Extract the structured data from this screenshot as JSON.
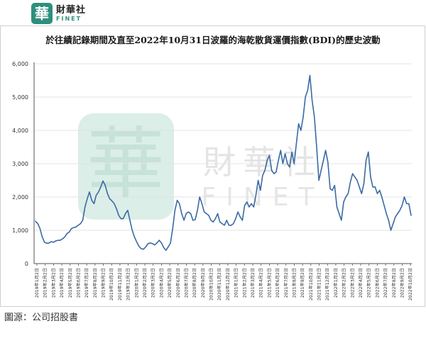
{
  "brand": {
    "mark": "華",
    "name_cn": "財華社",
    "name_en": "FINET"
  },
  "watermark": {
    "mark": "華",
    "name_cn": "財華社",
    "name_en": "FINET"
  },
  "source": "圖源：公司招股書",
  "colors": {
    "line": "#3a6aa3",
    "brand": "#2f8f7c",
    "grid": "#e3e3e3",
    "axis": "#555555"
  },
  "chart_data": {
    "type": "line",
    "title": "於往績記錄期間及直至2022年10月31日波羅的海乾散貨運價指數(BDI)的歷史波動",
    "xlabel": "",
    "ylabel": "",
    "ylim": [
      0,
      6000
    ],
    "yticks": [
      0,
      1000,
      2000,
      3000,
      4000,
      5000,
      6000
    ],
    "ytick_labels": [
      "0",
      "1,000",
      "2,000",
      "3,000",
      "4,000",
      "5,000",
      "6,000"
    ],
    "grid": "horizontal",
    "xticks": [
      "2019年1月2日",
      "2019年2月2日",
      "2019年3月2日",
      "2019年4月2日",
      "2019年5月2日",
      "2019年6月2日",
      "2019年7月2日",
      "2019年8月2日",
      "2019年9月2日",
      "2019年10月2日",
      "2019年11月2日",
      "2019年12月2日",
      "2020年1月2日",
      "2020年2月2日",
      "2020年3月2日",
      "2020年4月2日",
      "2020年5月2日",
      "2020年6月2日",
      "2020年7月2日",
      "2020年8月2日",
      "2020年9月2日",
      "2020年10月2日",
      "2020年11月2日",
      "2020年12月2日",
      "2021年1月2日",
      "2021年2月2日",
      "2021年3月2日",
      "2021年4月2日",
      "2021年5月2日",
      "2021年6月2日",
      "2021年7月2日",
      "2021年8月2日",
      "2021年9月2日",
      "2021年10月2日",
      "2021年11月2日",
      "2021年12月2日",
      "2022年1月2日",
      "2022年2月2日",
      "2022年3月2日",
      "2022年4月2日",
      "2022年5月2日",
      "2022年6月2日",
      "2022年7月2日",
      "2022年8月2日",
      "2022年9月2日",
      "2022年10月2日"
    ],
    "series": [
      {
        "values": [
          1270,
          1200,
          1050,
          800,
          640,
          610,
          620,
          660,
          640,
          680,
          700,
          700,
          740,
          800,
          900,
          950,
          1050,
          1080,
          1100,
          1150,
          1200,
          1300,
          1700,
          1950,
          2150,
          1900,
          1800,
          2050,
          2150,
          2300,
          2480,
          2350,
          2100,
          1950,
          1880,
          1800,
          1650,
          1450,
          1350,
          1350,
          1500,
          1600,
          1300,
          1000,
          800,
          650,
          520,
          450,
          430,
          500,
          600,
          620,
          600,
          560,
          620,
          700,
          620,
          480,
          400,
          500,
          620,
          1050,
          1600,
          1900,
          1800,
          1500,
          1300,
          1500,
          1550,
          1500,
          1300,
          1320,
          1600,
          2000,
          1800,
          1550,
          1500,
          1450,
          1300,
          1250,
          1350,
          1500,
          1250,
          1200,
          1150,
          1300,
          1150,
          1150,
          1200,
          1350,
          1550,
          1400,
          1300,
          1750,
          1850,
          1700,
          1800,
          1700,
          2050,
          2500,
          2200,
          2650,
          2800,
          3100,
          3250,
          2800,
          2700,
          2750,
          3100,
          3400,
          3000,
          3300,
          3000,
          2900,
          3350,
          3000,
          3600,
          4200,
          4000,
          4400,
          5000,
          5200,
          5650,
          4900,
          4400,
          3500,
          2500,
          2800,
          3100,
          3400,
          3050,
          2250,
          2200,
          2350,
          1700,
          1500,
          1300,
          1850,
          2000,
          2100,
          2450,
          2700,
          2600,
          2500,
          2300,
          2100,
          2400,
          3100,
          3350,
          2600,
          2300,
          2300,
          2100,
          2200,
          2000,
          1750,
          1500,
          1300,
          1000,
          1200,
          1400,
          1500,
          1600,
          1750,
          2000,
          1800,
          1800,
          1450
        ]
      }
    ]
  }
}
